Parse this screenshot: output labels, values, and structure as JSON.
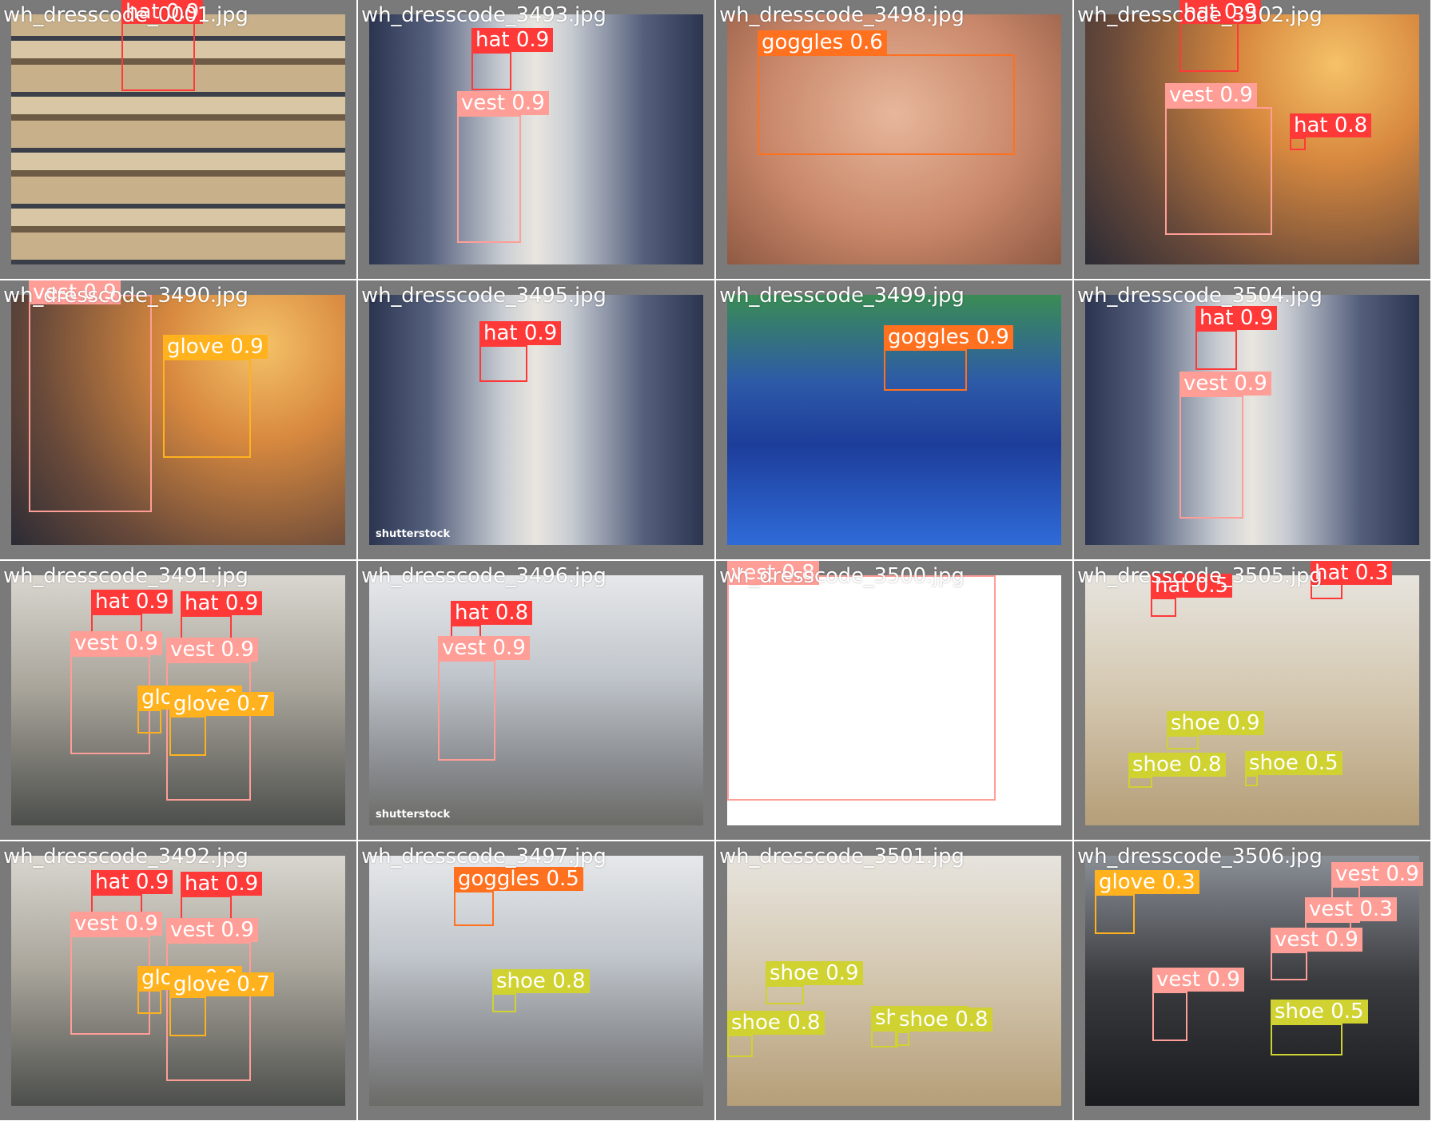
{
  "colors": {
    "hat": "#ff3838",
    "vest": "#ff9d97",
    "goggles": "#ff701f",
    "glove": "#ffb21d",
    "shoe": "#cfd231",
    "tile_bg": "#7a7a7a"
  },
  "tiles": [
    {
      "file": "wh_dresscode_0001.jpg",
      "scene": "shelves",
      "dets": [
        {
          "label": "hat 0.9",
          "cls": "hat"
        }
      ]
    },
    {
      "file": "wh_dresscode_3493.jpg",
      "scene": "aisle",
      "dets": [
        {
          "label": "hat 0.9",
          "cls": "hat"
        },
        {
          "label": "vest 0.9",
          "cls": "vest"
        }
      ]
    },
    {
      "file": "wh_dresscode_3498.jpg",
      "scene": "skin",
      "dets": [
        {
          "label": "goggles 0.6",
          "cls": "goggles"
        }
      ]
    },
    {
      "file": "wh_dresscode_3502.jpg",
      "scene": "blur-warm",
      "dets": [
        {
          "label": "hat 0.9",
          "cls": "hat"
        },
        {
          "label": "vest 0.9",
          "cls": "vest"
        },
        {
          "label": "hat 0.8",
          "cls": "hat"
        }
      ]
    },
    {
      "file": "wh_dresscode_3490.jpg",
      "scene": "blur-warm",
      "dets": [
        {
          "label": "vest 0.9",
          "cls": "vest"
        },
        {
          "label": "glove 0.9",
          "cls": "glove"
        }
      ]
    },
    {
      "file": "wh_dresscode_3495.jpg",
      "scene": "aisle",
      "watermark": "shutterstock",
      "dets": [
        {
          "label": "hat 0.9",
          "cls": "hat"
        }
      ]
    },
    {
      "file": "wh_dresscode_3499.jpg",
      "scene": "blue-bins",
      "dets": [
        {
          "label": "goggles 0.9",
          "cls": "goggles"
        }
      ]
    },
    {
      "file": "wh_dresscode_3504.jpg",
      "scene": "aisle",
      "dets": [
        {
          "label": "hat 0.9",
          "cls": "hat"
        },
        {
          "label": "vest 0.9",
          "cls": "vest"
        }
      ]
    },
    {
      "file": "wh_dresscode_3491.jpg",
      "scene": "factory",
      "dets": [
        {
          "label": "hat 0.9",
          "cls": "hat"
        },
        {
          "label": "hat 0.9",
          "cls": "hat"
        },
        {
          "label": "vest 0.9",
          "cls": "vest"
        },
        {
          "label": "vest 0.9",
          "cls": "vest"
        },
        {
          "label": "glove 0.9",
          "cls": "glove"
        },
        {
          "label": "glove 0.7",
          "cls": "glove"
        }
      ]
    },
    {
      "file": "wh_dresscode_3496.jpg",
      "scene": "warehouse2",
      "watermark": "shutterstock",
      "dets": [
        {
          "label": "hat 0.8",
          "cls": "hat"
        },
        {
          "label": "vest 0.9",
          "cls": "vest"
        }
      ]
    },
    {
      "file": "wh_dresscode_3500.jpg",
      "scene": "white",
      "dets": [
        {
          "label": "vest 0.8",
          "cls": "vest"
        }
      ]
    },
    {
      "file": "wh_dresscode_3505.jpg",
      "scene": "boxes",
      "dets": [
        {
          "label": "hat 0.5",
          "cls": "hat"
        },
        {
          "label": "hat 0.3",
          "cls": "hat"
        },
        {
          "label": "shoe 0.9",
          "cls": "shoe"
        },
        {
          "label": "shoe 0.8",
          "cls": "shoe"
        },
        {
          "label": "shoe 0.5",
          "cls": "shoe"
        }
      ]
    },
    {
      "file": "wh_dresscode_3492.jpg",
      "scene": "factory",
      "dets": [
        {
          "label": "hat 0.9",
          "cls": "hat"
        },
        {
          "label": "hat 0.9",
          "cls": "hat"
        },
        {
          "label": "vest 0.9",
          "cls": "vest"
        },
        {
          "label": "vest 0.9",
          "cls": "vest"
        },
        {
          "label": "glove 0.9",
          "cls": "glove"
        },
        {
          "label": "glove 0.7",
          "cls": "glove"
        }
      ]
    },
    {
      "file": "wh_dresscode_3497.jpg",
      "scene": "warehouse2",
      "dets": [
        {
          "label": "goggles 0.5",
          "cls": "goggles"
        },
        {
          "label": "shoe 0.8",
          "cls": "shoe"
        }
      ]
    },
    {
      "file": "wh_dresscode_3501.jpg",
      "scene": "boxes",
      "dets": [
        {
          "label": "shoe 0.9",
          "cls": "shoe"
        },
        {
          "label": "shoe 0.8",
          "cls": "shoe"
        },
        {
          "label": "shoe 0.8",
          "cls": "shoe"
        },
        {
          "label": "shoe 0.8",
          "cls": "shoe"
        }
      ]
    },
    {
      "file": "wh_dresscode_3506.jpg",
      "scene": "dark",
      "dets": [
        {
          "label": "glove 0.3",
          "cls": "glove"
        },
        {
          "label": "vest 0.9",
          "cls": "vest"
        },
        {
          "label": "vest 0.3",
          "cls": "vest"
        },
        {
          "label": "vest 0.9",
          "cls": "vest"
        },
        {
          "label": "vest 0.9",
          "cls": "vest"
        },
        {
          "label": "shoe 0.5",
          "cls": "shoe"
        }
      ]
    }
  ]
}
